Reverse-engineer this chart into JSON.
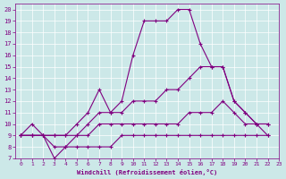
{
  "xlabel": "Windchill (Refroidissement éolien,°C)",
  "background_color": "#cce8e8",
  "line_color": "#800080",
  "xlim": [
    -0.5,
    23
  ],
  "ylim": [
    7,
    20.5
  ],
  "xticks": [
    0,
    1,
    2,
    3,
    4,
    5,
    6,
    7,
    8,
    9,
    10,
    11,
    12,
    13,
    14,
    15,
    16,
    17,
    18,
    19,
    20,
    21,
    22,
    23
  ],
  "yticks": [
    7,
    8,
    9,
    10,
    11,
    12,
    13,
    14,
    15,
    16,
    17,
    18,
    19,
    20
  ],
  "series": [
    {
      "x": [
        0,
        1,
        2,
        3,
        4,
        5,
        6,
        7,
        8,
        9,
        10,
        11,
        12,
        13,
        14,
        15,
        16,
        17,
        18,
        19,
        20,
        21,
        22
      ],
      "y": [
        9,
        10,
        9,
        9,
        9,
        10,
        11,
        13,
        11,
        12,
        16,
        19,
        19,
        19,
        20,
        20,
        17,
        15,
        15,
        12,
        11,
        10,
        10
      ]
    },
    {
      "x": [
        0,
        1,
        2,
        3,
        4,
        5,
        6,
        7,
        8,
        9,
        10,
        11,
        12,
        13,
        14,
        15,
        16,
        17,
        18,
        19,
        20,
        21,
        22
      ],
      "y": [
        9,
        9,
        9,
        9,
        9,
        9,
        10,
        11,
        11,
        11,
        12,
        12,
        12,
        13,
        13,
        14,
        15,
        15,
        15,
        12,
        11,
        10,
        10
      ]
    },
    {
      "x": [
        0,
        1,
        2,
        3,
        4,
        5,
        6,
        7,
        8,
        9,
        10,
        11,
        12,
        13,
        14,
        15,
        16,
        17,
        18,
        19,
        20,
        21,
        22
      ],
      "y": [
        9,
        9,
        9,
        8,
        8,
        8,
        8,
        8,
        8,
        9,
        9,
        9,
        9,
        9,
        9,
        9,
        9,
        9,
        9,
        9,
        9,
        9,
        9
      ]
    },
    {
      "x": [
        0,
        1,
        2,
        3,
        4,
        5,
        6,
        7,
        8,
        9,
        10,
        11,
        12,
        13,
        14,
        15,
        16,
        17,
        18,
        19,
        20,
        21,
        22
      ],
      "y": [
        9,
        9,
        9,
        7,
        8,
        9,
        9,
        10,
        10,
        10,
        10,
        10,
        10,
        10,
        10,
        11,
        11,
        11,
        12,
        11,
        10,
        10,
        9
      ]
    }
  ],
  "marker": "+"
}
